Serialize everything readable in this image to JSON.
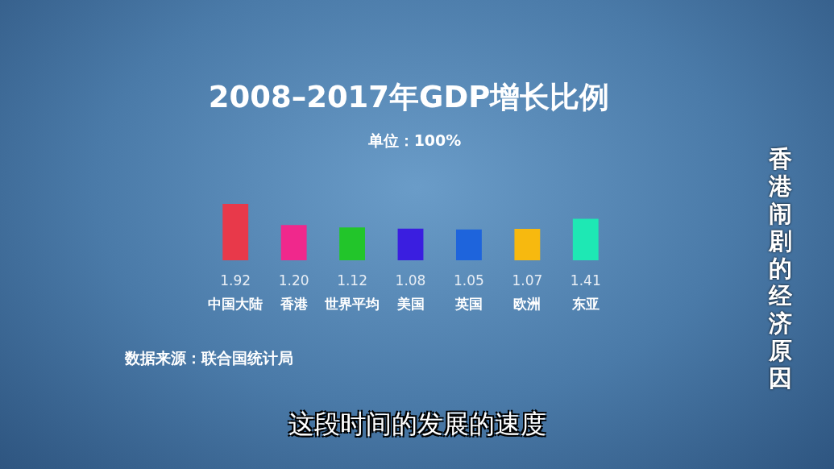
{
  "chart_data": {
    "type": "bar",
    "title": "2008–2017年GDP增长比例",
    "subtitle": "单位：100%",
    "categories": [
      "中国大陆",
      "香港",
      "世界平均",
      "美国",
      "英国",
      "欧洲",
      "东亚"
    ],
    "values": [
      1.92,
      1.2,
      1.12,
      1.08,
      1.05,
      1.07,
      1.41
    ],
    "colors": [
      "#e8394a",
      "#f0288c",
      "#22c52a",
      "#3a1ee0",
      "#1e64dc",
      "#f7b90f",
      "#1ee8b4"
    ],
    "value_labels": [
      "1.92",
      "1.20",
      "1.12",
      "1.08",
      "1.05",
      "1.07",
      "1.41"
    ],
    "legend": false,
    "annotations": [
      "数据来源：联合国统计局",
      "香港闹剧的经济原因",
      "这段时间的发展的速度"
    ]
  }
}
